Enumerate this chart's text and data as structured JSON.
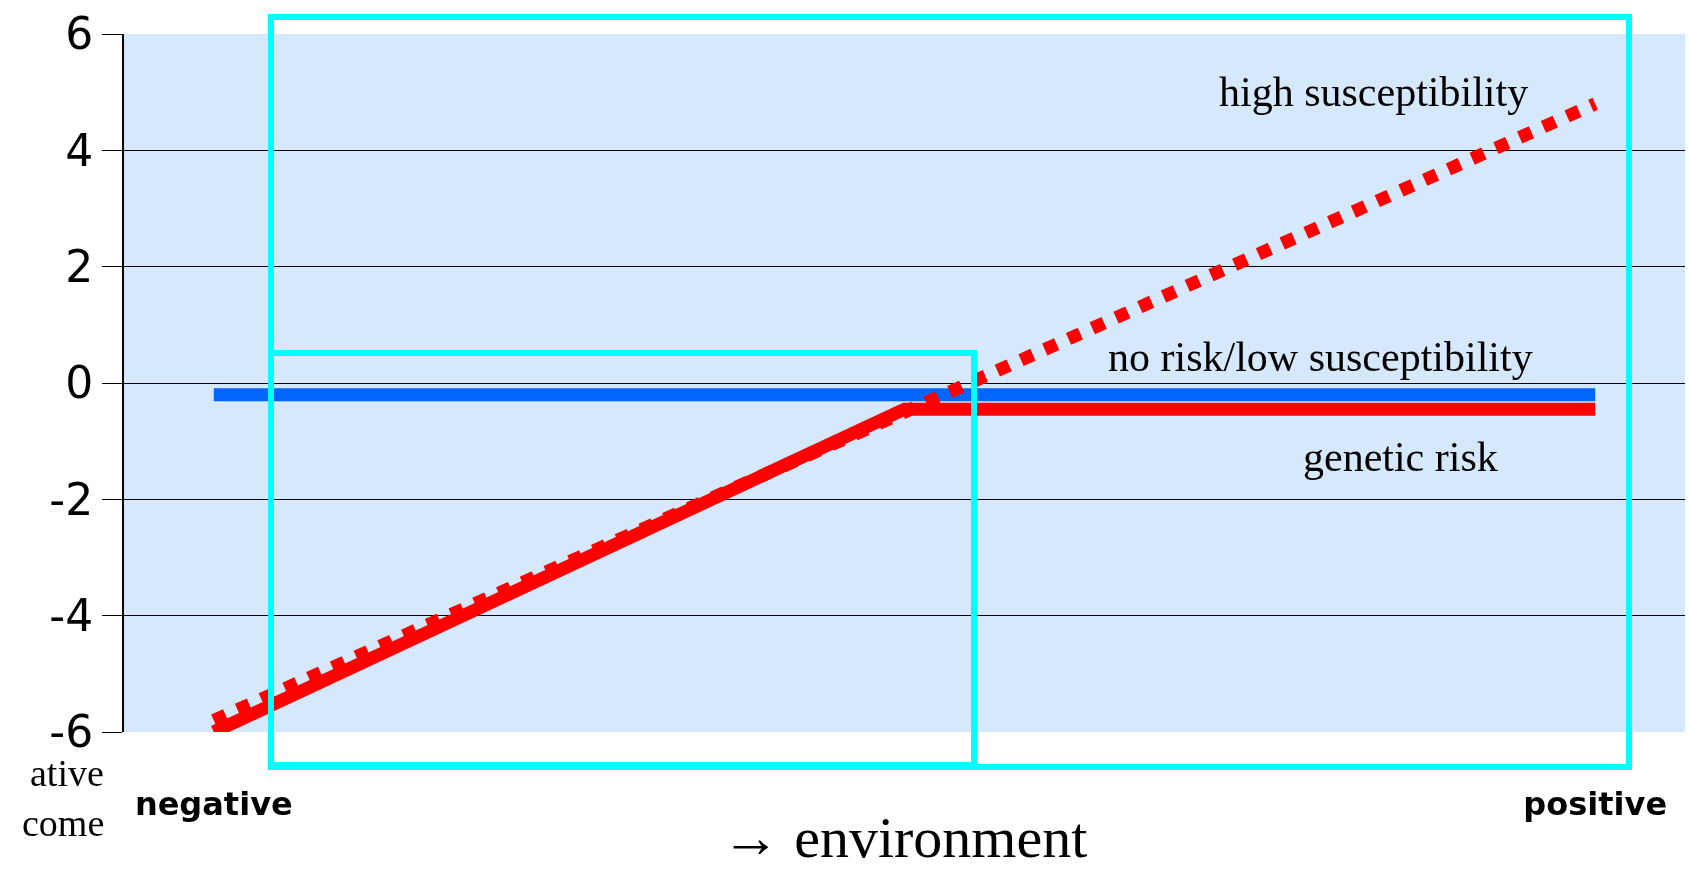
{
  "chart_data": {
    "type": "line",
    "xlabel": "→ environment",
    "annotations": [
      "ative",
      "come"
    ],
    "categories": [
      "negative",
      null,
      "positive"
    ],
    "ylim": [
      -6,
      6
    ],
    "yticks": [
      -6,
      -4,
      -2,
      0,
      2,
      4,
      6
    ],
    "grid": "y",
    "legend": false,
    "marker": "none",
    "series": [
      {
        "name": "no risk/low susceptibility",
        "color": "#0066ff",
        "values": [
          -0.2,
          -0.2,
          -0.2
        ],
        "line_style": "solid"
      },
      {
        "name": "genetic risk",
        "color": "#ff0000",
        "values": [
          -6,
          -0.45,
          -0.45
        ],
        "line_style": "solid"
      },
      {
        "name": "high susceptibility",
        "color": "#ff0000",
        "values": [
          -5.8,
          -0.5,
          4.8
        ],
        "line_style": "dotted"
      }
    ]
  }
}
